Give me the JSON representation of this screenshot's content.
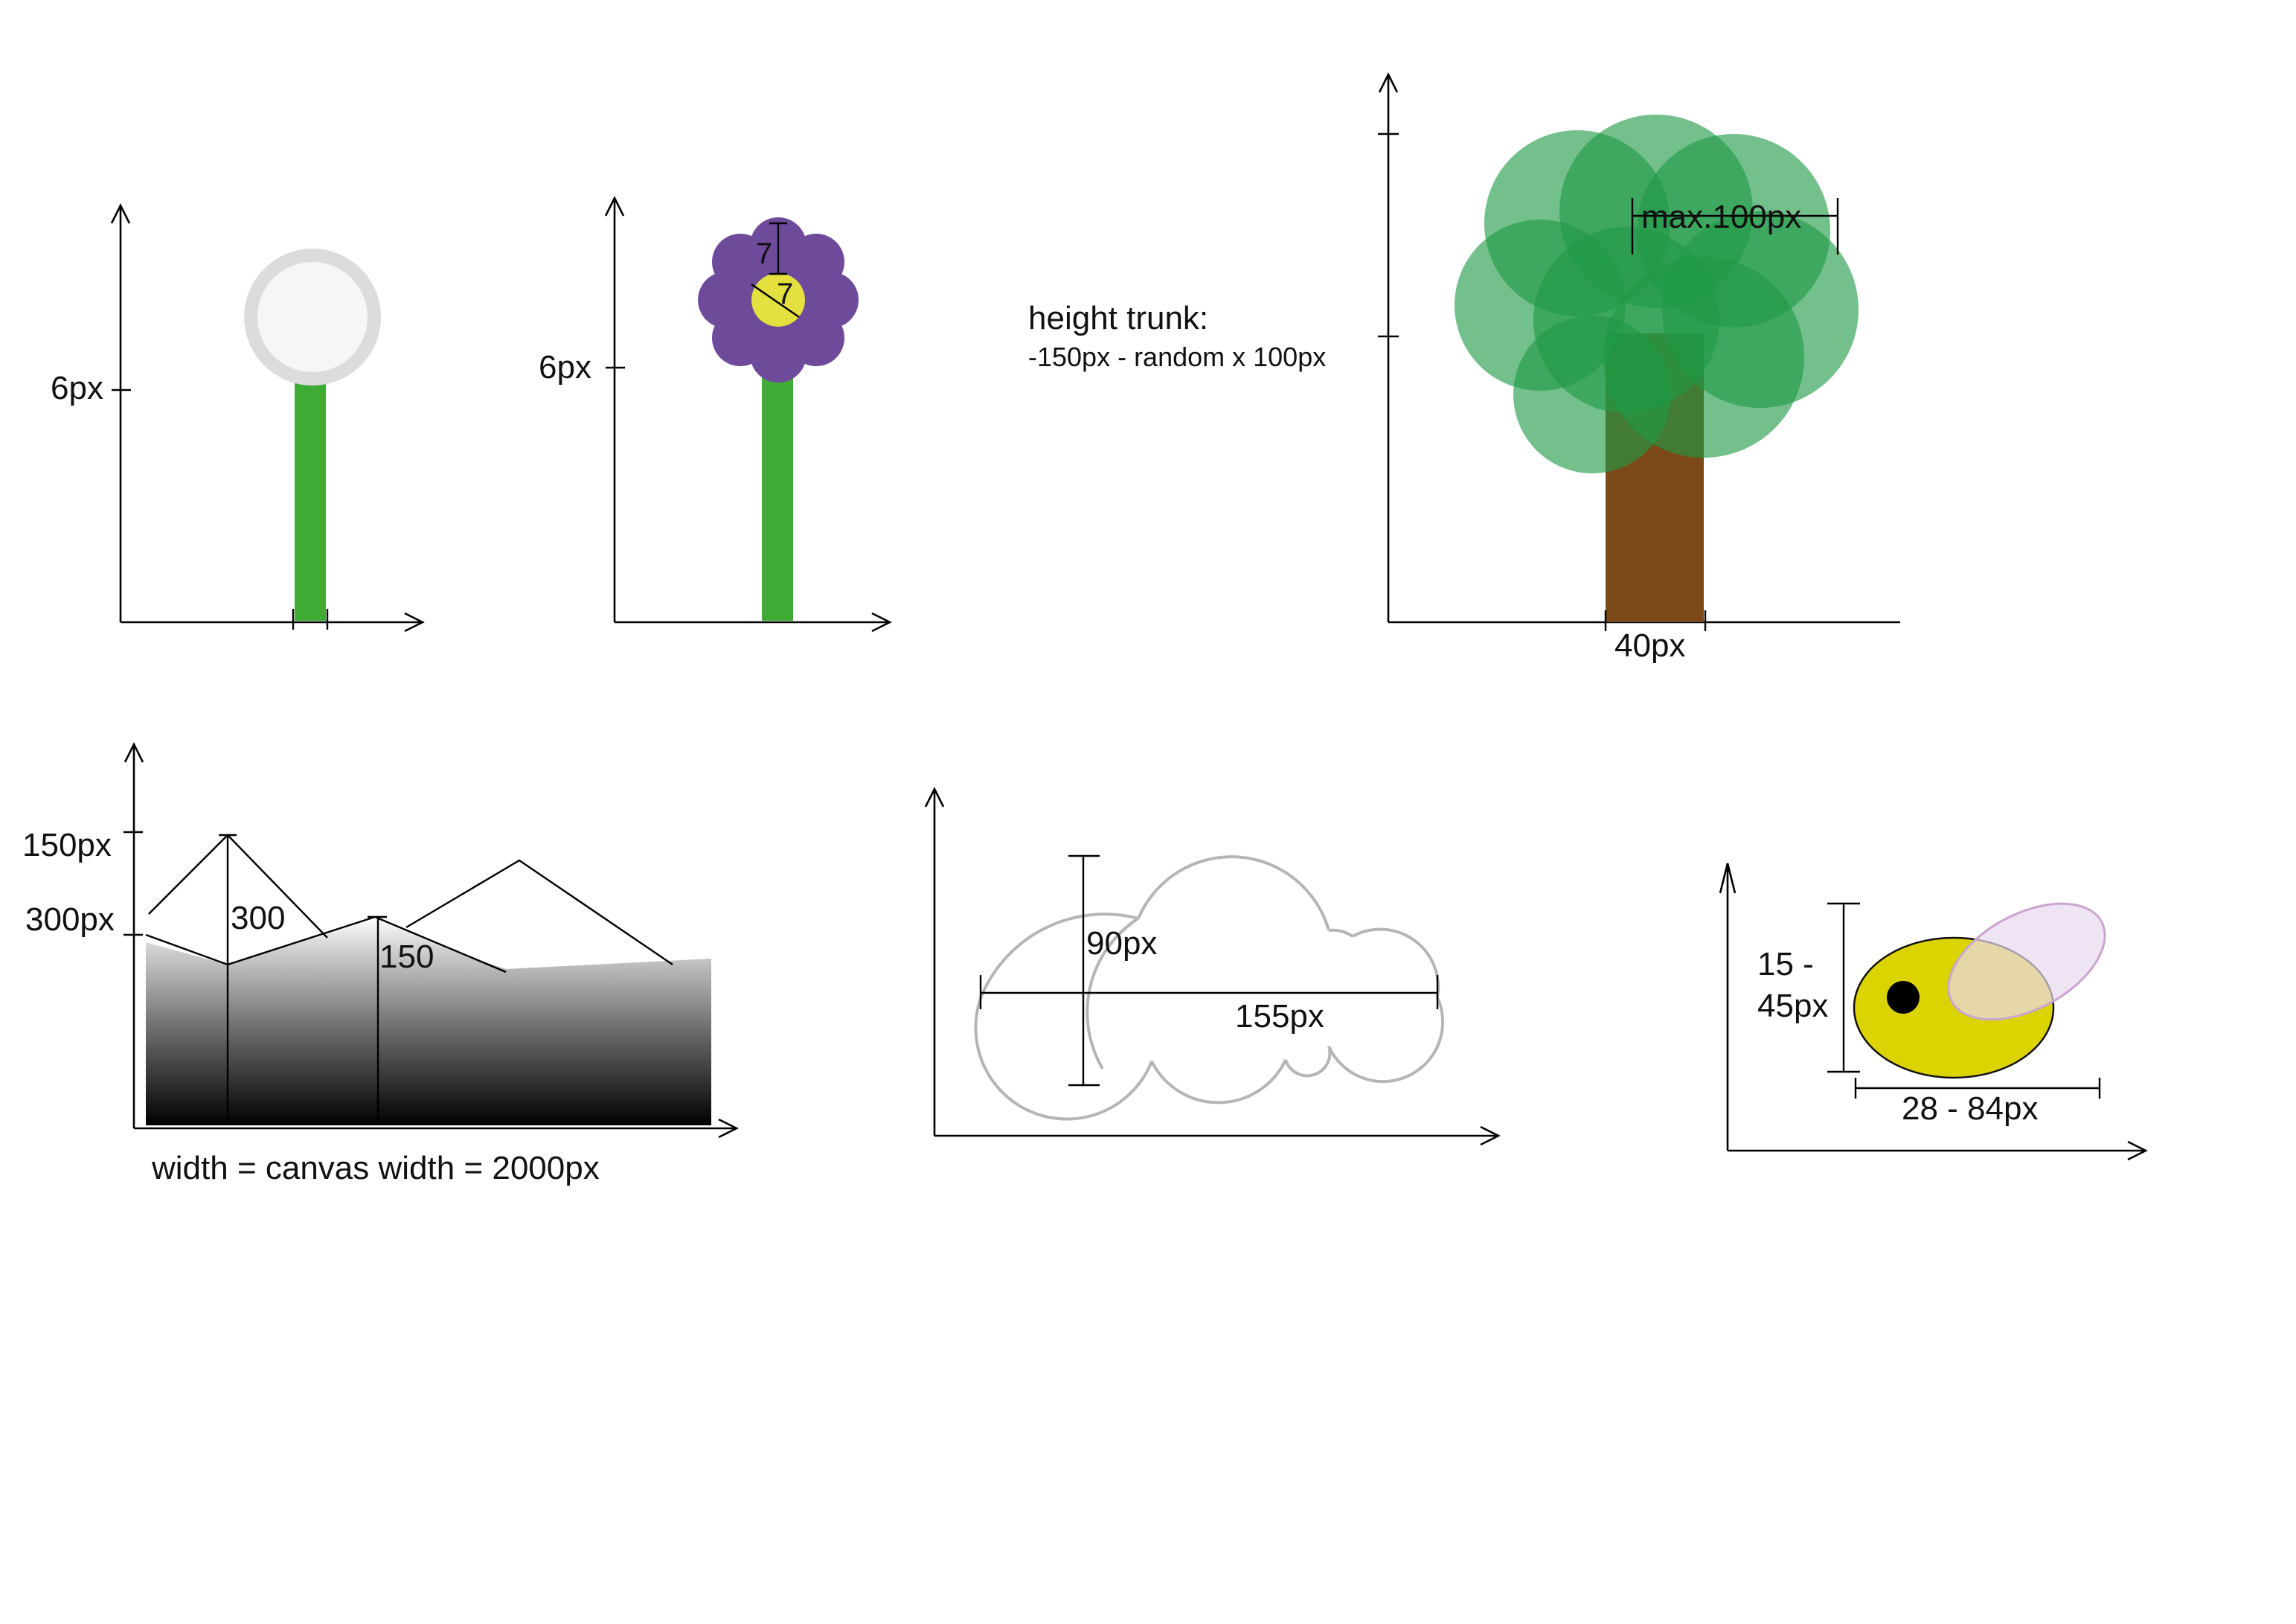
{
  "colors": {
    "stem": "#3dab34",
    "dandelion_head": "#f4f7f3",
    "dandelion_ring": "#dcdcdc",
    "petal": "#6e4a9b",
    "flower_center": "#e3e040",
    "leaf": "#1f9a45",
    "trunk": "#7b4a18",
    "cloud_outline": "#b5b5b5",
    "bee_body": "#dcd400",
    "bee_wing": "#e8d8ee",
    "bee_eye": "#000000"
  },
  "dandelion": {
    "height_label": "6px"
  },
  "flower": {
    "height_label": "6px",
    "petal_label": "7",
    "center_label": "7"
  },
  "tree": {
    "note_title": "height trunk:",
    "note_formula": "-150px - random x 100px",
    "crown_label": "max.100px",
    "trunk_width_label": "40px"
  },
  "mountains": {
    "label_150": "150px",
    "label_300": "300px",
    "peak_label_1": "300",
    "peak_label_2": "150",
    "width_label": "width = canvas width = 2000px"
  },
  "cloud": {
    "height_label": "90px",
    "width_label": "155px"
  },
  "bee": {
    "height_label_line1": "15 -",
    "height_label_line2": "45px",
    "width_label": "28 - 84px"
  }
}
